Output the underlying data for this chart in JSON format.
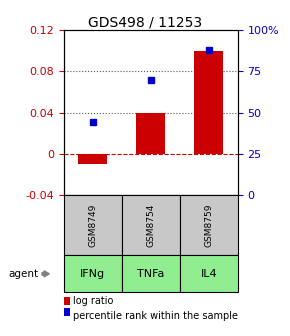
{
  "title": "GDS498 / 11253",
  "categories": [
    "GSM8749",
    "GSM8754",
    "GSM8759"
  ],
  "agents": [
    "IFNg",
    "TNFa",
    "IL4"
  ],
  "log_ratios": [
    -0.01,
    0.04,
    0.1
  ],
  "percentile_ranks": [
    0.44,
    0.7,
    0.88
  ],
  "bar_color": "#cc0000",
  "dot_color": "#0000cc",
  "ylim_left": [
    -0.04,
    0.12
  ],
  "ylim_right": [
    0.0,
    1.0
  ],
  "yticks_left": [
    -0.04,
    0.0,
    0.04,
    0.08,
    0.12
  ],
  "ytick_labels_left": [
    "-0.04",
    "0",
    "0.04",
    "0.08",
    "0.12"
  ],
  "yticks_right": [
    0.0,
    0.25,
    0.5,
    0.75,
    1.0
  ],
  "ytick_labels_right": [
    "0",
    "25",
    "50",
    "75",
    "100%"
  ],
  "hlines": [
    0.04,
    0.08
  ],
  "zero_line_color": "#cc0000",
  "dotted_line_color": "#555555",
  "gsm_bg_color": "#c8c8c8",
  "agent_bg_color": "#90ee90",
  "title_color": "#000000",
  "left_axis_color": "#cc0000",
  "right_axis_color": "#0000cc",
  "bar_width": 0.5,
  "fig_width": 2.9,
  "fig_height": 3.36,
  "dpi": 100
}
